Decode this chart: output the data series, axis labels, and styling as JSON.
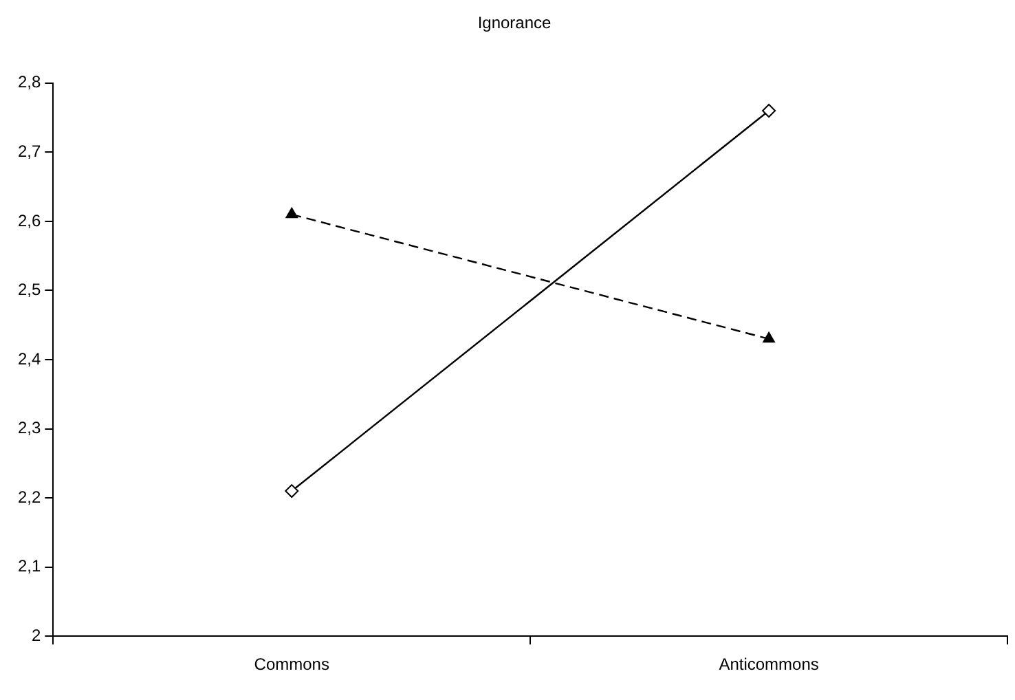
{
  "chart_data": {
    "type": "line",
    "title": "Ignorance",
    "categories": [
      "Commons",
      "Anticommons"
    ],
    "series": [
      {
        "color": "#000000",
        "values": [
          2.21,
          2.76
        ],
        "marker": "diamond",
        "line_style": "solid"
      },
      {
        "color": "#000000",
        "values": [
          2.61,
          2.43
        ],
        "marker": "triangle",
        "line_style": "dashed"
      }
    ],
    "ylim": [
      2,
      2.8
    ],
    "yticks": [
      2,
      {
        "value": 2.1,
        "label": "2,1"
      },
      {
        "value": 2.2,
        "label": "2,2"
      },
      {
        "value": 2.3,
        "label": "2,3"
      },
      {
        "value": 2.4,
        "label": "2,4"
      },
      {
        "value": 2.5,
        "label": "2,5"
      },
      {
        "value": 2.6,
        "label": "2,6"
      },
      {
        "value": 2.7,
        "label": "2,7"
      },
      {
        "value": 2.8,
        "label": "2,8"
      }
    ],
    "grid": false,
    "legend": false
  }
}
